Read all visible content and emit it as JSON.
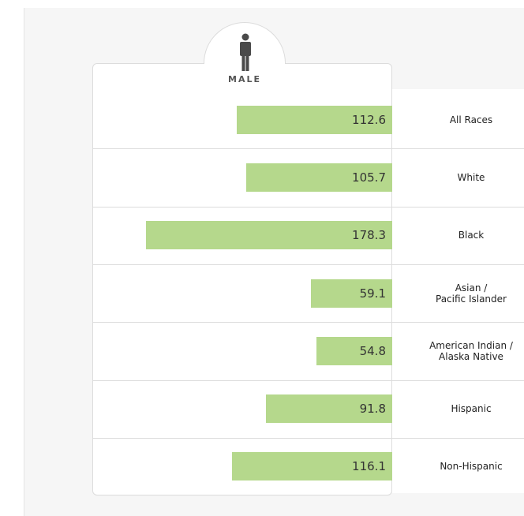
{
  "colors": {
    "bar": "#b5d88c",
    "text": "#222222",
    "divider": "#dcdcdc",
    "page_background": "#f6f6f6"
  },
  "header": {
    "icon": "male-person-icon",
    "label": "MALE"
  },
  "chart_data": {
    "type": "bar",
    "orientation": "horizontal",
    "bars_grow_from": "right",
    "title": "",
    "xlabel": "",
    "ylabel": "",
    "xlim": [
      0,
      190
    ],
    "grid": false,
    "categories": [
      "All Races",
      "White",
      "Black",
      "Asian /\nPacific Islander",
      "American Indian /\nAlaska Native",
      "Hispanic",
      "Non-Hispanic"
    ],
    "values": [
      112.6,
      105.7,
      178.3,
      59.1,
      54.8,
      91.8,
      116.1
    ],
    "value_labels": [
      "112.6",
      "105.7",
      "178.3",
      "59.1",
      "54.8",
      "91.8",
      "116.1"
    ]
  }
}
